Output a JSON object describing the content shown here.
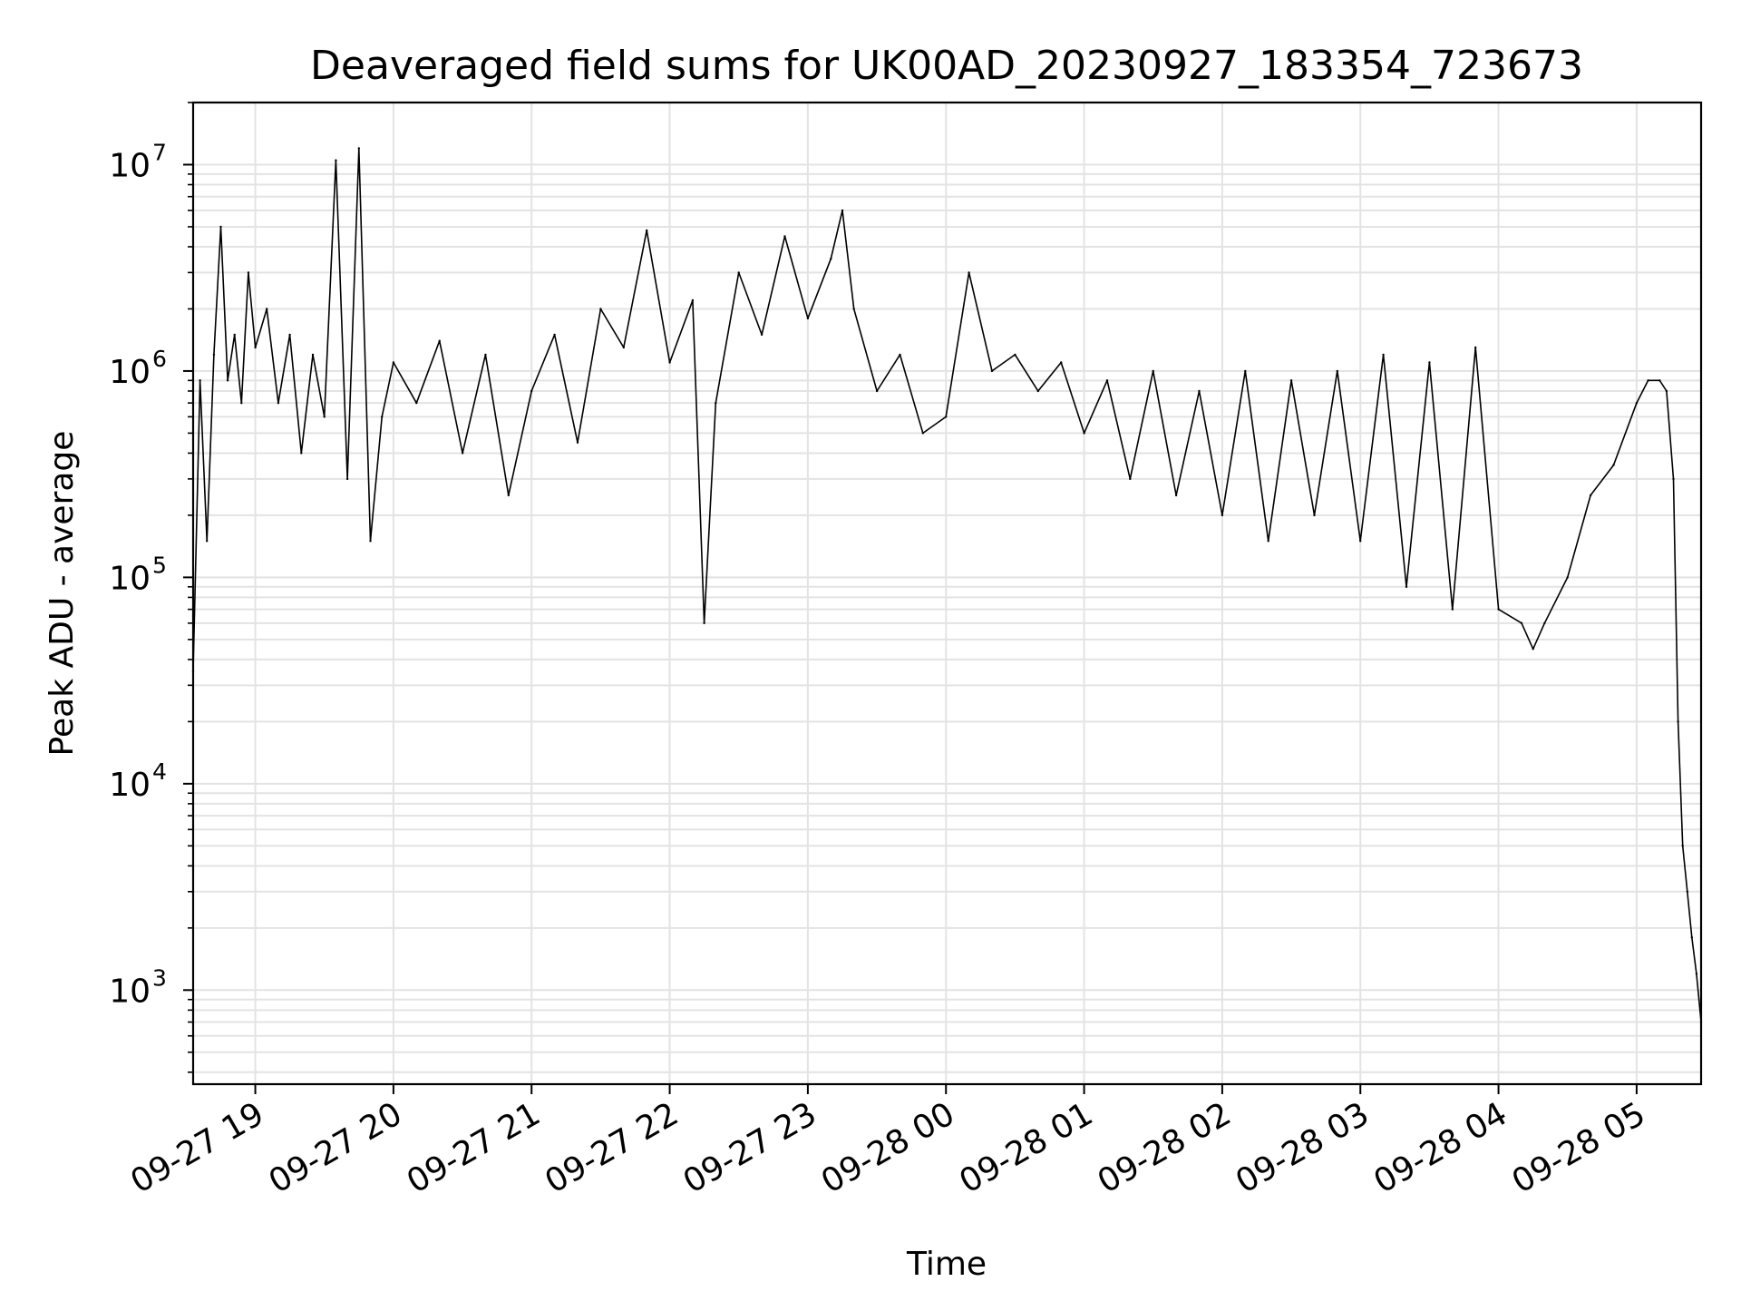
{
  "chart_data": {
    "type": "line",
    "title": "Deaveraged field sums for UK00AD_20230927_183354_723673",
    "xlabel": "Time",
    "ylabel": "Peak ADU - average",
    "yscale": "log",
    "ylim": [
      350,
      20000000
    ],
    "xlim": [
      "2023-09-27 18:33",
      "2023-09-28 05:28"
    ],
    "grid": true,
    "line_color": "#000000",
    "grid_color": "#e3e3e3",
    "x_ticks": [
      {
        "t": "2023-09-27 19:00",
        "label": "09-27 19"
      },
      {
        "t": "2023-09-27 20:00",
        "label": "09-27 20"
      },
      {
        "t": "2023-09-27 21:00",
        "label": "09-27 21"
      },
      {
        "t": "2023-09-27 22:00",
        "label": "09-27 22"
      },
      {
        "t": "2023-09-27 23:00",
        "label": "09-27 23"
      },
      {
        "t": "2023-09-28 00:00",
        "label": "09-28 00"
      },
      {
        "t": "2023-09-28 01:00",
        "label": "09-28 01"
      },
      {
        "t": "2023-09-28 02:00",
        "label": "09-28 02"
      },
      {
        "t": "2023-09-28 03:00",
        "label": "09-28 03"
      },
      {
        "t": "2023-09-28 04:00",
        "label": "09-28 04"
      },
      {
        "t": "2023-09-28 05:00",
        "label": "09-28 05"
      }
    ],
    "y_ticks": [
      {
        "value": 1000,
        "base": "10",
        "exp": "3"
      },
      {
        "value": 10000,
        "base": "10",
        "exp": "4"
      },
      {
        "value": 100000,
        "base": "10",
        "exp": "5"
      },
      {
        "value": 1000000,
        "base": "10",
        "exp": "6"
      },
      {
        "value": 10000000,
        "base": "10",
        "exp": "7"
      }
    ],
    "series": [
      {
        "x": [
          "2023-09-27 18:33",
          "2023-09-27 18:36",
          "2023-09-27 18:39",
          "2023-09-27 18:42",
          "2023-09-27 18:45",
          "2023-09-27 18:48",
          "2023-09-27 18:51",
          "2023-09-27 18:54",
          "2023-09-27 18:57",
          "2023-09-27 19:00",
          "2023-09-27 19:05",
          "2023-09-27 19:10",
          "2023-09-27 19:15",
          "2023-09-27 19:20",
          "2023-09-27 19:25",
          "2023-09-27 19:30",
          "2023-09-27 19:35",
          "2023-09-27 19:40",
          "2023-09-27 19:45",
          "2023-09-27 19:50",
          "2023-09-27 19:55",
          "2023-09-27 20:00",
          "2023-09-27 20:10",
          "2023-09-27 20:20",
          "2023-09-27 20:30",
          "2023-09-27 20:40",
          "2023-09-27 20:50",
          "2023-09-27 21:00",
          "2023-09-27 21:10",
          "2023-09-27 21:20",
          "2023-09-27 21:30",
          "2023-09-27 21:40",
          "2023-09-27 21:50",
          "2023-09-27 22:00",
          "2023-09-27 22:10",
          "2023-09-27 22:15",
          "2023-09-27 22:20",
          "2023-09-27 22:30",
          "2023-09-27 22:40",
          "2023-09-27 22:50",
          "2023-09-27 23:00",
          "2023-09-27 23:10",
          "2023-09-27 23:15",
          "2023-09-27 23:20",
          "2023-09-27 23:30",
          "2023-09-27 23:40",
          "2023-09-27 23:50",
          "2023-09-28 00:00",
          "2023-09-28 00:10",
          "2023-09-28 00:20",
          "2023-09-28 00:30",
          "2023-09-28 00:40",
          "2023-09-28 00:50",
          "2023-09-28 01:00",
          "2023-09-28 01:10",
          "2023-09-28 01:20",
          "2023-09-28 01:30",
          "2023-09-28 01:40",
          "2023-09-28 01:50",
          "2023-09-28 02:00",
          "2023-09-28 02:10",
          "2023-09-28 02:20",
          "2023-09-28 02:30",
          "2023-09-28 02:40",
          "2023-09-28 02:50",
          "2023-09-28 03:00",
          "2023-09-28 03:10",
          "2023-09-28 03:20",
          "2023-09-28 03:30",
          "2023-09-28 03:40",
          "2023-09-28 03:50",
          "2023-09-28 04:00",
          "2023-09-28 04:10",
          "2023-09-28 04:15",
          "2023-09-28 04:20",
          "2023-09-28 04:30",
          "2023-09-28 04:40",
          "2023-09-28 04:50",
          "2023-09-28 05:00",
          "2023-09-28 05:05",
          "2023-09-28 05:10",
          "2023-09-28 05:13",
          "2023-09-28 05:16",
          "2023-09-28 05:18",
          "2023-09-28 05:20",
          "2023-09-28 05:22",
          "2023-09-28 05:24",
          "2023-09-28 05:26",
          "2023-09-28 05:28"
        ],
        "y": [
          35000,
          900000,
          150000,
          1200000,
          5000000,
          900000,
          1500000,
          700000,
          3000000,
          1300000,
          2000000,
          700000,
          1500000,
          400000,
          1200000,
          600000,
          10500000,
          300000,
          12000000,
          150000,
          600000,
          1100000,
          700000,
          1400000,
          400000,
          1200000,
          250000,
          800000,
          1500000,
          450000,
          2000000,
          1300000,
          4800000,
          1100000,
          2200000,
          60000,
          700000,
          3000000,
          1500000,
          4500000,
          1800000,
          3500000,
          6000000,
          2000000,
          800000,
          1200000,
          500000,
          600000,
          3000000,
          1000000,
          1200000,
          800000,
          1100000,
          500000,
          900000,
          300000,
          1000000,
          250000,
          800000,
          200000,
          1000000,
          150000,
          900000,
          200000,
          1000000,
          150000,
          1200000,
          90000,
          1100000,
          70000,
          1300000,
          70000,
          60000,
          45000,
          60000,
          100000,
          250000,
          350000,
          700000,
          900000,
          900000,
          800000,
          300000,
          20000,
          5000,
          3000,
          1800,
          1200,
          700
        ]
      }
    ],
    "annotation_values": {
      "spike_peak_1": 10500000,
      "spike_peak_2": 12000000
    }
  }
}
